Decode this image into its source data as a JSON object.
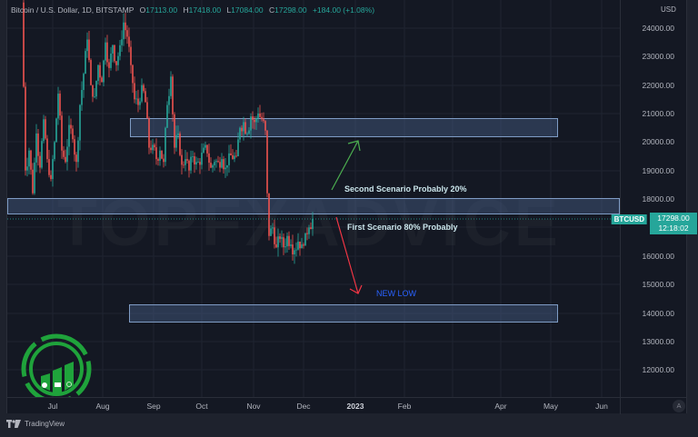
{
  "legend": {
    "symbol": "Bitcoin / U.S. Dollar, 1D, BITSTAMP",
    "open_label": "O",
    "open": "17113.00",
    "high_label": "H",
    "high": "17418.00",
    "low_label": "L",
    "low": "17084.00",
    "close_label": "C",
    "close": "17298.00",
    "change": "+184.00 (+1.08%)"
  },
  "price_axis": {
    "currency": "USD",
    "ticks": [
      "24000.00",
      "23000.00",
      "22000.00",
      "21000.00",
      "20000.00",
      "19000.00",
      "18000.00",
      "16000.00",
      "15000.00",
      "14000.00",
      "13000.00",
      "12000.00"
    ]
  },
  "time_axis": {
    "ticks": [
      "Jul",
      "Aug",
      "Sep",
      "Oct",
      "Nov",
      "Dec",
      "2023",
      "Feb",
      "Apr",
      "May",
      "Jun"
    ]
  },
  "last_price": {
    "symbol": "BTCUSD",
    "price": "17298.00",
    "countdown": "12:18:02"
  },
  "annotations": {
    "second_scenario": "Second Scenario  Probably 20%",
    "first_scenario": "First Scenario 80% Probably",
    "new_low": "NEW LOW"
  },
  "watermark": "TOPFXADVICE",
  "auto_scale_label": "A",
  "branding": "TradingView",
  "colors": {
    "up": "#26a69a",
    "down": "#ef5350",
    "zone_border": "#7f9cc5",
    "new_low": "#2962ff",
    "green_arrow": "#4caf50",
    "red_arrow": "#f23645",
    "logo_green": "#1fa33b"
  },
  "chart_data": {
    "type": "candlestick",
    "title": "Bitcoin / U.S. Dollar, 1D, BITSTAMP",
    "xlabel": "",
    "ylabel": "USD",
    "ylim": [
      11200,
      25000
    ],
    "grid": true,
    "x_ticks": [
      "Jul",
      "Aug",
      "Sep",
      "Oct",
      "Nov",
      "Dec",
      "2023",
      "Feb",
      "Apr",
      "May",
      "Jun"
    ],
    "y_ticks": [
      12000,
      13000,
      14000,
      15000,
      16000,
      17000,
      18000,
      19000,
      20000,
      21000,
      22000,
      23000,
      24000
    ],
    "last_ohlc": {
      "open": 17113.0,
      "high": 17418.0,
      "low": 17084.0,
      "close": 17298.0,
      "change": 184.0,
      "change_pct": 1.08
    },
    "approx_close_path": [
      {
        "period": "mid-Jun",
        "close": 22000
      },
      {
        "period": "late-Jun",
        "close": 20500
      },
      {
        "period": "Jul start",
        "close": 19300
      },
      {
        "period": "mid-Jul",
        "close": 20800
      },
      {
        "period": "late-Jul",
        "close": 23000
      },
      {
        "period": "early-Aug",
        "close": 23200
      },
      {
        "period": "mid-Aug",
        "close": 24300
      },
      {
        "period": "late-Aug",
        "close": 21400
      },
      {
        "period": "early-Sep",
        "close": 20000
      },
      {
        "period": "mid-Sep",
        "close": 22300
      },
      {
        "period": "late-Sep",
        "close": 19000
      },
      {
        "period": "Oct",
        "close": 19300
      },
      {
        "period": "early-Nov",
        "close": 20900
      },
      {
        "period": "Nov 9",
        "close": 16000
      },
      {
        "period": "late-Nov",
        "close": 16400
      },
      {
        "period": "Dec",
        "close": 17298
      }
    ],
    "zones": [
      {
        "name": "resistance",
        "from": 20200,
        "to": 20850
      },
      {
        "name": "current range",
        "from": 17600,
        "to": 18050
      },
      {
        "name": "new low target",
        "from": 13700,
        "to": 14300
      }
    ],
    "annotations": [
      {
        "text": "Second Scenario  Probably 20%",
        "direction": "up",
        "target": 20200
      },
      {
        "text": "First Scenario 80% Probably",
        "direction": "down",
        "target": 14700
      },
      {
        "text": "NEW LOW",
        "price": 14700
      }
    ]
  }
}
